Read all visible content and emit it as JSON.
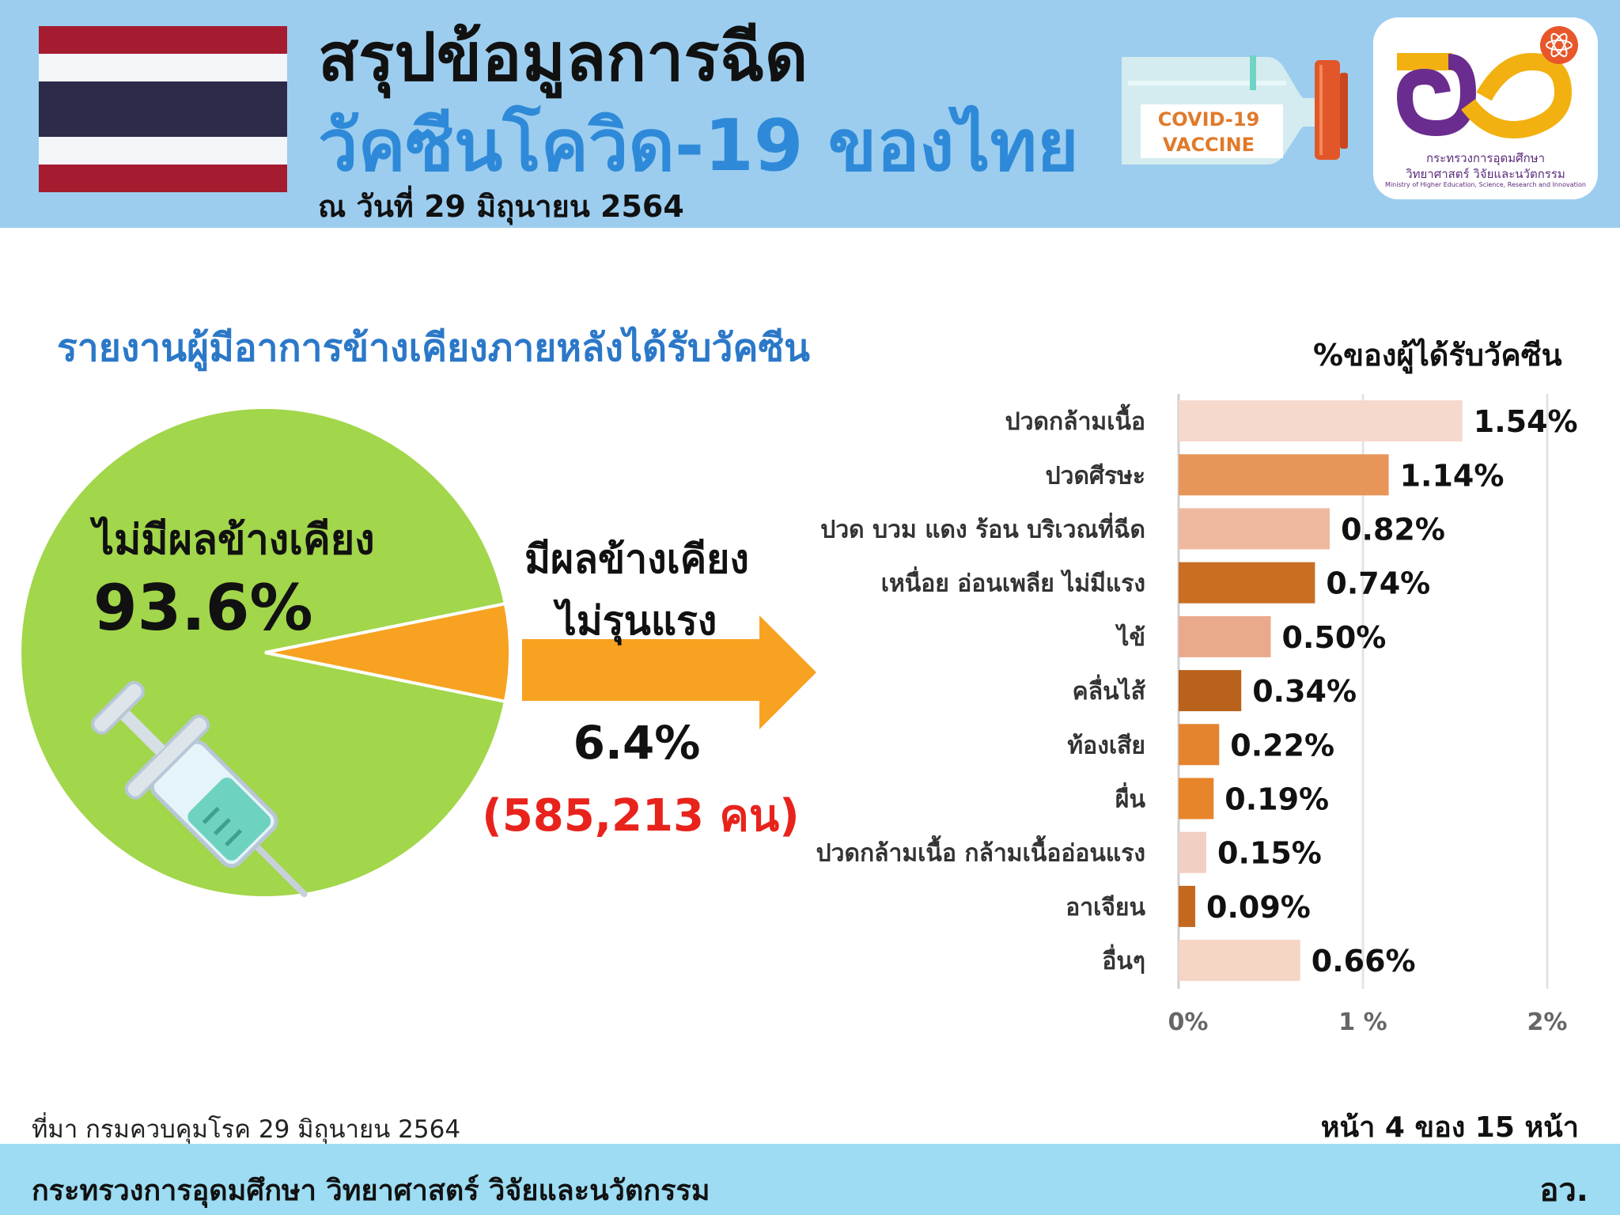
{
  "header": {
    "title_line1": "สรุปข้อมูลการฉีด",
    "title_line2": "วัคซีนโควิด-19 ของไทย",
    "date": "ณ วันที่ 29 มิถุนายน 2564",
    "vaccine_label_line1": "COVID-19",
    "vaccine_label_line2": "VACCINE",
    "logo_text_th_line1": "กระทรวงการอุดมศึกษา",
    "logo_text_th_line2": "วิทยาศาสตร์ วิจัยและนวัตกรรม",
    "logo_text_en": "Ministry of Higher Education, Science, Research and Innovation"
  },
  "section_title": "รายงานผู้มีอาการข้างเคียงภายหลังได้รับวัคซีน",
  "pie": {
    "no_side_effect_label": "ไม่มีผลข้างเคียง",
    "no_side_effect_value": "93.6%",
    "side_effect_label_line1": "มีผลข้างเคียง",
    "side_effect_label_line2": "ไม่รุนแรง",
    "side_effect_value": "6.4%",
    "side_effect_count": "(585,213 คน)"
  },
  "chart_data": [
    {
      "type": "pie",
      "categories": [
        "ไม่มีผลข้างเคียง",
        "มีผลข้างเคียง ไม่รุนแรง"
      ],
      "values": [
        93.6,
        6.4
      ],
      "colors": [
        "#a2d64b",
        "#f7a221"
      ]
    },
    {
      "type": "bar",
      "orientation": "horizontal",
      "title": "%ของผู้ได้รับวัคซีน",
      "categories": [
        "ปวดกล้ามเนื้อ",
        "ปวดศีรษะ",
        "ปวด บวม แดง ร้อน บริเวณที่ฉีด",
        "เหนื่อย อ่อนเพลีย ไม่มีแรง",
        "ไข้",
        "คลื่นไส้",
        "ท้องเสีย",
        "ผื่น",
        "ปวดกล้ามเนื้อ กล้ามเนื้ออ่อนแรง",
        "อาเจียน",
        "อื่นๆ"
      ],
      "values": [
        1.54,
        1.14,
        0.82,
        0.74,
        0.5,
        0.34,
        0.22,
        0.19,
        0.15,
        0.09,
        0.66
      ],
      "value_labels": [
        "1.54%",
        "1.14%",
        "0.82%",
        "0.74%",
        "0.50%",
        "0.34%",
        "0.22%",
        "0.19%",
        "0.15%",
        "0.09%",
        "0.66%"
      ],
      "colors": [
        "#f5d9cd",
        "#e8955a",
        "#efb9a0",
        "#c96e22",
        "#eba98c",
        "#b9621c",
        "#e4842e",
        "#e8842a",
        "#f2cfc3",
        "#c46820",
        "#f5d5c4"
      ],
      "xlim": [
        0,
        2
      ],
      "xticks": [
        "0%",
        "1 %",
        "2%"
      ],
      "grid": true
    }
  ],
  "footer": {
    "source": "ที่มา กรมควบคุมโรค 29 มิถุนายน 2564",
    "page_indicator": "หน้า 4 ของ 15 หน้า",
    "ministry": "กระทรวงการอุดมศึกษา วิทยาศาสตร์ วิจัยและนวัตกรรม",
    "abbreviation": "อว."
  }
}
